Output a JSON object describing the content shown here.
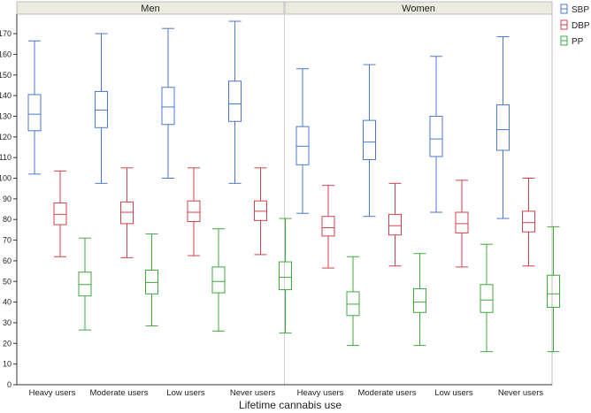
{
  "chart_data": {
    "type": "boxplot",
    "xlabel": "Lifetime cannabis use",
    "ylabel": "",
    "ylim": [
      0,
      180
    ],
    "ytick_step": 10,
    "categories": [
      "Heavy users",
      "Moderate users",
      "Low users",
      "Never users"
    ],
    "panels": [
      {
        "label": "Men",
        "groups": [
          {
            "category": "Heavy users",
            "SBP": {
              "whislo": 102,
              "q1": 123,
              "med": 131,
              "q3": 140.5,
              "whishi": 166.5
            },
            "DBP": {
              "whislo": 62,
              "q1": 77.5,
              "med": 82.5,
              "q3": 88,
              "whishi": 103.5
            },
            "PP": {
              "whislo": 26.5,
              "q1": 43,
              "med": 48.5,
              "q3": 54.5,
              "whishi": 71
            }
          },
          {
            "category": "Moderate users",
            "SBP": {
              "whislo": 97.5,
              "q1": 124.5,
              "med": 133,
              "q3": 142,
              "whishi": 170
            },
            "DBP": {
              "whislo": 61.5,
              "q1": 78,
              "med": 83.5,
              "q3": 88.5,
              "whishi": 105
            },
            "PP": {
              "whislo": 28.5,
              "q1": 44,
              "med": 49.5,
              "q3": 55.5,
              "whishi": 73
            }
          },
          {
            "category": "Low users",
            "SBP": {
              "whislo": 100,
              "q1": 126,
              "med": 134.5,
              "q3": 144,
              "whishi": 172.5
            },
            "DBP": {
              "whislo": 62.5,
              "q1": 79,
              "med": 83.5,
              "q3": 89,
              "whishi": 105
            },
            "PP": {
              "whislo": 26,
              "q1": 44.5,
              "med": 50,
              "q3": 57,
              "whishi": 75.5
            }
          },
          {
            "category": "Never users",
            "SBP": {
              "whislo": 97.5,
              "q1": 127.5,
              "med": 136,
              "q3": 147,
              "whishi": 176
            },
            "DBP": {
              "whislo": 63,
              "q1": 79.5,
              "med": 84,
              "q3": 89,
              "whishi": 105
            },
            "PP": {
              "whislo": 25,
              "q1": 46,
              "med": 52,
              "q3": 59.5,
              "whishi": 80.5
            }
          }
        ]
      },
      {
        "label": "Women",
        "groups": [
          {
            "category": "Heavy users",
            "SBP": {
              "whislo": 83,
              "q1": 106.5,
              "med": 115.5,
              "q3": 125,
              "whishi": 153
            },
            "DBP": {
              "whislo": 56.5,
              "q1": 72,
              "med": 76,
              "q3": 81.5,
              "whishi": 96.5
            },
            "PP": {
              "whislo": 19,
              "q1": 33.5,
              "med": 39,
              "q3": 45,
              "whishi": 62
            }
          },
          {
            "category": "Moderate users",
            "SBP": {
              "whislo": 81.5,
              "q1": 109,
              "med": 117.5,
              "q3": 128,
              "whishi": 155
            },
            "DBP": {
              "whislo": 57.5,
              "q1": 72.5,
              "med": 77,
              "q3": 82.5,
              "whishi": 97.5
            },
            "PP": {
              "whislo": 19,
              "q1": 35,
              "med": 40,
              "q3": 46.5,
              "whishi": 63.5
            }
          },
          {
            "category": "Low users",
            "SBP": {
              "whislo": 83.5,
              "q1": 110.5,
              "med": 119,
              "q3": 130,
              "whishi": 159
            },
            "DBP": {
              "whislo": 57,
              "q1": 73.5,
              "med": 78,
              "q3": 83.5,
              "whishi": 99
            },
            "PP": {
              "whislo": 16,
              "q1": 35,
              "med": 41,
              "q3": 48.5,
              "whishi": 68
            }
          },
          {
            "category": "Never users",
            "SBP": {
              "whislo": 80.5,
              "q1": 113.5,
              "med": 123.5,
              "q3": 135.5,
              "whishi": 168.5
            },
            "DBP": {
              "whislo": 57.5,
              "q1": 74,
              "med": 78.5,
              "q3": 84,
              "whishi": 100
            },
            "PP": {
              "whislo": 16,
              "q1": 37.5,
              "med": 44,
              "q3": 53,
              "whishi": 76.5
            }
          }
        ]
      }
    ],
    "series": [
      {
        "name": "SBP",
        "color": "#4a78cf"
      },
      {
        "name": "DBP",
        "color": "#d2424c"
      },
      {
        "name": "PP",
        "color": "#3fa83f"
      }
    ],
    "legend_position": "right",
    "grid": false
  }
}
